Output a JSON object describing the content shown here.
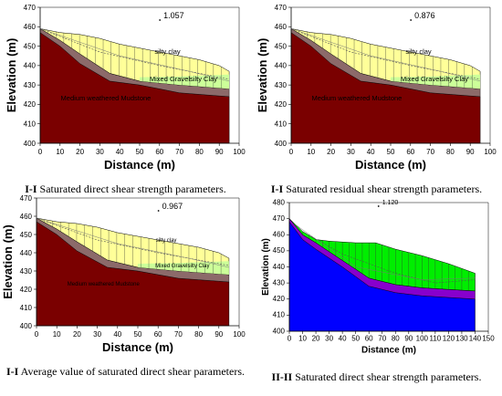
{
  "panels": [
    {
      "id": "p1",
      "factor": "1.057",
      "caption_roman": "I-I",
      "caption_text": "Saturated direct shear strength parameters.",
      "style": "std"
    },
    {
      "id": "p2",
      "factor": "0.876",
      "caption_roman": "I-I",
      "caption_text": "Saturated residual shear strength parameters.",
      "style": "std"
    },
    {
      "id": "p3",
      "factor": "0.967",
      "caption_roman": "I-I",
      "caption_text": "Average value of saturated direct shear parameters.",
      "style": "std"
    },
    {
      "id": "p4",
      "factor": "1.120",
      "caption_roman": "II-II",
      "caption_text": "Saturated direct shear strength parameters.",
      "style": "blue"
    }
  ],
  "labels": {
    "silty_clay": "silty clay",
    "gravel_clay": "Mixed Gravelsilty Clay",
    "mudstone": "Medium weathered Mudstone",
    "xlabel": "Distance",
    "xunit": "(m)",
    "ylabel": "Elevation",
    "yunit": "(m)"
  },
  "colors": {
    "silty_clay": "#ffff99",
    "gravel_clay": "#ccff99",
    "weathered_band": "#8c6a6a",
    "mudstone": "#7a0000",
    "p4_clay": "#00ee00",
    "p4_band": "#8800cc",
    "p4_base": "#0000ff"
  },
  "chart_data": [
    {
      "panel": "p1",
      "type": "area",
      "xlim": [
        0,
        100
      ],
      "ylim": [
        400,
        470
      ],
      "xticks": [
        0,
        10,
        20,
        30,
        40,
        50,
        60,
        70,
        80,
        90,
        100
      ],
      "yticks": [
        400,
        410,
        420,
        430,
        440,
        450,
        460,
        470
      ],
      "ground_surface": {
        "x": [
          0,
          10,
          20,
          30,
          40,
          50,
          60,
          70,
          80,
          90,
          95
        ],
        "y": [
          459,
          457,
          456,
          454,
          451,
          449,
          447,
          445,
          443,
          440,
          437
        ]
      },
      "clay_base": {
        "x": [
          0,
          10,
          20,
          35,
          50,
          70,
          95
        ],
        "y": [
          459,
          453,
          446,
          436,
          432,
          430,
          428
        ]
      },
      "mudstone_top": {
        "x": [
          0,
          10,
          20,
          35,
          50,
          70,
          95
        ],
        "y": [
          457,
          450,
          441,
          432,
          430,
          426,
          424
        ]
      }
    },
    {
      "panel": "p2",
      "type": "area",
      "xlim": [
        0,
        100
      ],
      "ylim": [
        400,
        470
      ],
      "xticks": [
        0,
        10,
        20,
        30,
        40,
        50,
        60,
        70,
        80,
        90,
        100
      ],
      "yticks": [
        400,
        410,
        420,
        430,
        440,
        450,
        460,
        470
      ],
      "ground_surface": {
        "x": [
          0,
          10,
          20,
          30,
          40,
          50,
          60,
          70,
          80,
          90,
          95
        ],
        "y": [
          459,
          457,
          456,
          454,
          451,
          449,
          447,
          445,
          443,
          440,
          437
        ]
      },
      "clay_base": {
        "x": [
          0,
          10,
          20,
          35,
          50,
          70,
          95
        ],
        "y": [
          459,
          453,
          446,
          436,
          432,
          430,
          428
        ]
      },
      "mudstone_top": {
        "x": [
          0,
          10,
          20,
          35,
          50,
          70,
          95
        ],
        "y": [
          457,
          450,
          441,
          432,
          430,
          426,
          424
        ]
      }
    },
    {
      "panel": "p3",
      "type": "area",
      "xlim": [
        0,
        100
      ],
      "ylim": [
        400,
        470
      ],
      "xticks": [
        0,
        10,
        20,
        30,
        40,
        50,
        60,
        70,
        80,
        90,
        100
      ],
      "yticks": [
        400,
        410,
        420,
        430,
        440,
        450,
        460,
        470
      ],
      "ground_surface": {
        "x": [
          0,
          10,
          20,
          30,
          40,
          50,
          60,
          70,
          80,
          90,
          95
        ],
        "y": [
          459,
          457,
          456,
          454,
          451,
          449,
          447,
          445,
          443,
          440,
          437
        ]
      },
      "clay_base": {
        "x": [
          0,
          10,
          20,
          35,
          50,
          70,
          95
        ],
        "y": [
          459,
          453,
          446,
          436,
          432,
          430,
          428
        ]
      },
      "mudstone_top": {
        "x": [
          0,
          10,
          20,
          35,
          50,
          70,
          95
        ],
        "y": [
          457,
          450,
          441,
          432,
          430,
          426,
          424
        ]
      }
    },
    {
      "panel": "p4",
      "type": "area",
      "xlim": [
        0,
        150
      ],
      "ylim": [
        400,
        480
      ],
      "xticks": [
        0,
        10,
        20,
        30,
        40,
        50,
        60,
        70,
        80,
        90,
        100,
        110,
        120,
        130,
        140,
        150
      ],
      "yticks": [
        400,
        410,
        420,
        430,
        440,
        450,
        460,
        470,
        480
      ],
      "ground_surface": {
        "x": [
          0,
          5,
          10,
          20,
          30,
          50,
          65,
          80,
          100,
          120,
          140
        ],
        "y": [
          470,
          466,
          462,
          457,
          456,
          455,
          455,
          451,
          447,
          442,
          436
        ]
      },
      "clay_base": {
        "x": [
          0,
          10,
          20,
          40,
          60,
          80,
          100,
          120,
          140
        ],
        "y": [
          470,
          460,
          455,
          444,
          433,
          429,
          427,
          426,
          425
        ]
      },
      "mudstone_top": {
        "x": [
          0,
          10,
          20,
          40,
          60,
          80,
          100,
          120,
          140
        ],
        "y": [
          468,
          457,
          451,
          440,
          428,
          424,
          422,
          421,
          420
        ]
      }
    }
  ]
}
